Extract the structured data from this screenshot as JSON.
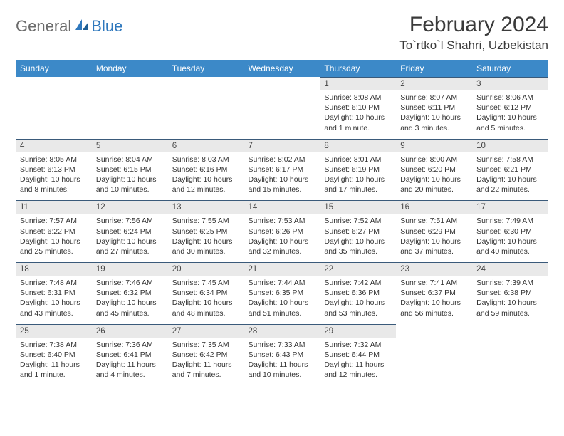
{
  "brand": {
    "text1": "General",
    "text2": "Blue"
  },
  "title": "February 2024",
  "location": "To`rtko`l Shahri, Uzbekistan",
  "colors": {
    "header_bg": "#3c89c8",
    "header_text": "#ffffff",
    "daynum_bg": "#e9e9e9",
    "rule": "#3a5a7a",
    "logo_gray": "#6b6b6b",
    "logo_blue": "#2f78bd"
  },
  "day_names": [
    "Sunday",
    "Monday",
    "Tuesday",
    "Wednesday",
    "Thursday",
    "Friday",
    "Saturday"
  ],
  "weeks": [
    [
      null,
      null,
      null,
      null,
      {
        "n": "1",
        "sr": "Sunrise: 8:08 AM",
        "ss": "Sunset: 6:10 PM",
        "dl1": "Daylight: 10 hours",
        "dl2": "and 1 minute."
      },
      {
        "n": "2",
        "sr": "Sunrise: 8:07 AM",
        "ss": "Sunset: 6:11 PM",
        "dl1": "Daylight: 10 hours",
        "dl2": "and 3 minutes."
      },
      {
        "n": "3",
        "sr": "Sunrise: 8:06 AM",
        "ss": "Sunset: 6:12 PM",
        "dl1": "Daylight: 10 hours",
        "dl2": "and 5 minutes."
      }
    ],
    [
      {
        "n": "4",
        "sr": "Sunrise: 8:05 AM",
        "ss": "Sunset: 6:13 PM",
        "dl1": "Daylight: 10 hours",
        "dl2": "and 8 minutes."
      },
      {
        "n": "5",
        "sr": "Sunrise: 8:04 AM",
        "ss": "Sunset: 6:15 PM",
        "dl1": "Daylight: 10 hours",
        "dl2": "and 10 minutes."
      },
      {
        "n": "6",
        "sr": "Sunrise: 8:03 AM",
        "ss": "Sunset: 6:16 PM",
        "dl1": "Daylight: 10 hours",
        "dl2": "and 12 minutes."
      },
      {
        "n": "7",
        "sr": "Sunrise: 8:02 AM",
        "ss": "Sunset: 6:17 PM",
        "dl1": "Daylight: 10 hours",
        "dl2": "and 15 minutes."
      },
      {
        "n": "8",
        "sr": "Sunrise: 8:01 AM",
        "ss": "Sunset: 6:19 PM",
        "dl1": "Daylight: 10 hours",
        "dl2": "and 17 minutes."
      },
      {
        "n": "9",
        "sr": "Sunrise: 8:00 AM",
        "ss": "Sunset: 6:20 PM",
        "dl1": "Daylight: 10 hours",
        "dl2": "and 20 minutes."
      },
      {
        "n": "10",
        "sr": "Sunrise: 7:58 AM",
        "ss": "Sunset: 6:21 PM",
        "dl1": "Daylight: 10 hours",
        "dl2": "and 22 minutes."
      }
    ],
    [
      {
        "n": "11",
        "sr": "Sunrise: 7:57 AM",
        "ss": "Sunset: 6:22 PM",
        "dl1": "Daylight: 10 hours",
        "dl2": "and 25 minutes."
      },
      {
        "n": "12",
        "sr": "Sunrise: 7:56 AM",
        "ss": "Sunset: 6:24 PM",
        "dl1": "Daylight: 10 hours",
        "dl2": "and 27 minutes."
      },
      {
        "n": "13",
        "sr": "Sunrise: 7:55 AM",
        "ss": "Sunset: 6:25 PM",
        "dl1": "Daylight: 10 hours",
        "dl2": "and 30 minutes."
      },
      {
        "n": "14",
        "sr": "Sunrise: 7:53 AM",
        "ss": "Sunset: 6:26 PM",
        "dl1": "Daylight: 10 hours",
        "dl2": "and 32 minutes."
      },
      {
        "n": "15",
        "sr": "Sunrise: 7:52 AM",
        "ss": "Sunset: 6:27 PM",
        "dl1": "Daylight: 10 hours",
        "dl2": "and 35 minutes."
      },
      {
        "n": "16",
        "sr": "Sunrise: 7:51 AM",
        "ss": "Sunset: 6:29 PM",
        "dl1": "Daylight: 10 hours",
        "dl2": "and 37 minutes."
      },
      {
        "n": "17",
        "sr": "Sunrise: 7:49 AM",
        "ss": "Sunset: 6:30 PM",
        "dl1": "Daylight: 10 hours",
        "dl2": "and 40 minutes."
      }
    ],
    [
      {
        "n": "18",
        "sr": "Sunrise: 7:48 AM",
        "ss": "Sunset: 6:31 PM",
        "dl1": "Daylight: 10 hours",
        "dl2": "and 43 minutes."
      },
      {
        "n": "19",
        "sr": "Sunrise: 7:46 AM",
        "ss": "Sunset: 6:32 PM",
        "dl1": "Daylight: 10 hours",
        "dl2": "and 45 minutes."
      },
      {
        "n": "20",
        "sr": "Sunrise: 7:45 AM",
        "ss": "Sunset: 6:34 PM",
        "dl1": "Daylight: 10 hours",
        "dl2": "and 48 minutes."
      },
      {
        "n": "21",
        "sr": "Sunrise: 7:44 AM",
        "ss": "Sunset: 6:35 PM",
        "dl1": "Daylight: 10 hours",
        "dl2": "and 51 minutes."
      },
      {
        "n": "22",
        "sr": "Sunrise: 7:42 AM",
        "ss": "Sunset: 6:36 PM",
        "dl1": "Daylight: 10 hours",
        "dl2": "and 53 minutes."
      },
      {
        "n": "23",
        "sr": "Sunrise: 7:41 AM",
        "ss": "Sunset: 6:37 PM",
        "dl1": "Daylight: 10 hours",
        "dl2": "and 56 minutes."
      },
      {
        "n": "24",
        "sr": "Sunrise: 7:39 AM",
        "ss": "Sunset: 6:38 PM",
        "dl1": "Daylight: 10 hours",
        "dl2": "and 59 minutes."
      }
    ],
    [
      {
        "n": "25",
        "sr": "Sunrise: 7:38 AM",
        "ss": "Sunset: 6:40 PM",
        "dl1": "Daylight: 11 hours",
        "dl2": "and 1 minute."
      },
      {
        "n": "26",
        "sr": "Sunrise: 7:36 AM",
        "ss": "Sunset: 6:41 PM",
        "dl1": "Daylight: 11 hours",
        "dl2": "and 4 minutes."
      },
      {
        "n": "27",
        "sr": "Sunrise: 7:35 AM",
        "ss": "Sunset: 6:42 PM",
        "dl1": "Daylight: 11 hours",
        "dl2": "and 7 minutes."
      },
      {
        "n": "28",
        "sr": "Sunrise: 7:33 AM",
        "ss": "Sunset: 6:43 PM",
        "dl1": "Daylight: 11 hours",
        "dl2": "and 10 minutes."
      },
      {
        "n": "29",
        "sr": "Sunrise: 7:32 AM",
        "ss": "Sunset: 6:44 PM",
        "dl1": "Daylight: 11 hours",
        "dl2": "and 12 minutes."
      },
      null,
      null
    ]
  ]
}
